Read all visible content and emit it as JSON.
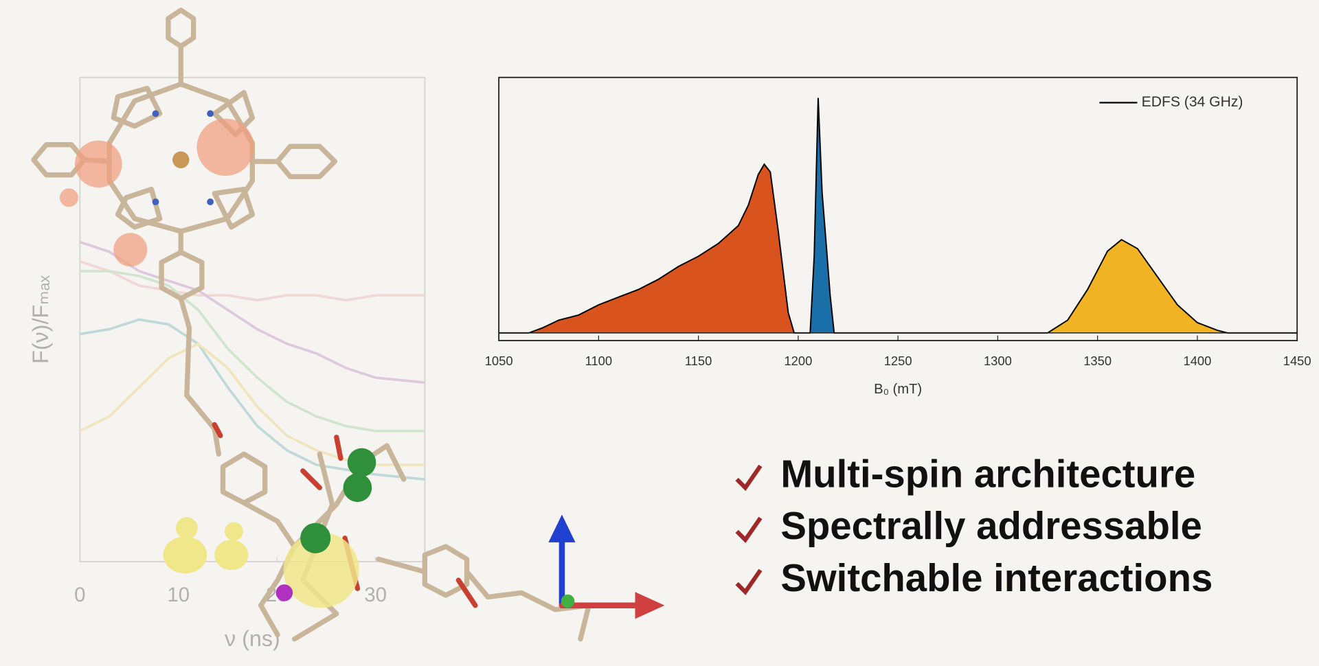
{
  "chart_data": [
    {
      "type": "area",
      "xlabel": "B₀ (mT)",
      "xlim": [
        1050,
        1450
      ],
      "xticks": [
        1050,
        1100,
        1150,
        1200,
        1250,
        1300,
        1350,
        1400,
        1450
      ],
      "ylim": [
        -0.03,
        1
      ],
      "legend": "upper right",
      "series": [
        {
          "type": "area",
          "color": "#d9531e",
          "x": [
            1065,
            1072,
            1080,
            1090,
            1100,
            1110,
            1120,
            1130,
            1140,
            1150,
            1160,
            1170,
            1175,
            1180,
            1183,
            1186,
            1190,
            1195,
            1198
          ],
          "values": [
            0,
            0.02,
            0.05,
            0.07,
            0.11,
            0.14,
            0.17,
            0.21,
            0.26,
            0.3,
            0.35,
            0.42,
            0.5,
            0.62,
            0.66,
            0.63,
            0.4,
            0.08,
            0
          ]
        },
        {
          "type": "area",
          "color": "#1a6fa8",
          "x": [
            1206,
            1208,
            1210,
            1212,
            1214,
            1216,
            1218
          ],
          "values": [
            0,
            0.3,
            0.92,
            0.55,
            0.35,
            0.15,
            0
          ]
        },
        {
          "type": "area",
          "color": "#f0b323",
          "x": [
            1325,
            1335,
            1345,
            1355,
            1362,
            1370,
            1380,
            1390,
            1400,
            1410,
            1415
          ],
          "values": [
            0,
            0.05,
            0.17,
            0.32,
            0.365,
            0.33,
            0.22,
            0.11,
            0.04,
            0.01,
            0
          ]
        },
        {
          "type": "line",
          "name": "EDFS (34 GHz)",
          "color": "#000000",
          "x": [
            1050,
            1065,
            1072,
            1080,
            1090,
            1100,
            1110,
            1120,
            1130,
            1140,
            1150,
            1160,
            1170,
            1175,
            1180,
            1183,
            1186,
            1190,
            1195,
            1198,
            1206,
            1208,
            1210,
            1212,
            1214,
            1216,
            1218,
            1325,
            1335,
            1345,
            1355,
            1362,
            1370,
            1380,
            1390,
            1400,
            1410,
            1415,
            1450
          ],
          "values": [
            0,
            0,
            0.02,
            0.05,
            0.07,
            0.11,
            0.14,
            0.17,
            0.21,
            0.26,
            0.3,
            0.35,
            0.42,
            0.5,
            0.62,
            0.66,
            0.63,
            0.4,
            0.08,
            0,
            0,
            0.3,
            0.92,
            0.55,
            0.35,
            0.15,
            0,
            0,
            0.05,
            0.17,
            0.32,
            0.365,
            0.33,
            0.22,
            0.11,
            0.04,
            0.01,
            0,
            0
          ]
        }
      ]
    },
    {
      "type": "line",
      "xlabel": "ν (ns)",
      "ylabel": "F(ν)/Fₘₐₓ",
      "xlim": [
        0,
        35
      ],
      "xticks": [
        0,
        10,
        20,
        30
      ],
      "ylim": [
        0,
        1
      ],
      "x": [
        0,
        3,
        6,
        9,
        12,
        15,
        18,
        21,
        24,
        27,
        30,
        35
      ],
      "series": [
        {
          "color": "#e8a0a0",
          "values": [
            0.62,
            0.6,
            0.57,
            0.56,
            0.55,
            0.55,
            0.54,
            0.55,
            0.55,
            0.54,
            0.55,
            0.55
          ]
        },
        {
          "color": "#b07ab8",
          "values": [
            0.66,
            0.64,
            0.6,
            0.58,
            0.56,
            0.52,
            0.48,
            0.45,
            0.43,
            0.4,
            0.38,
            0.37
          ]
        },
        {
          "color": "#8cc88c",
          "values": [
            0.6,
            0.6,
            0.59,
            0.57,
            0.52,
            0.44,
            0.38,
            0.33,
            0.3,
            0.28,
            0.27,
            0.27
          ]
        },
        {
          "color": "#5aa6b0",
          "values": [
            0.47,
            0.48,
            0.5,
            0.49,
            0.45,
            0.36,
            0.28,
            0.23,
            0.2,
            0.19,
            0.18,
            0.17
          ]
        },
        {
          "color": "#e8c860",
          "values": [
            0.27,
            0.3,
            0.36,
            0.42,
            0.45,
            0.4,
            0.32,
            0.26,
            0.23,
            0.21,
            0.2,
            0.2
          ]
        }
      ]
    }
  ],
  "bullets": [
    "Multi-spin architecture",
    "Spectrally addressable",
    "Switchable interactions"
  ]
}
